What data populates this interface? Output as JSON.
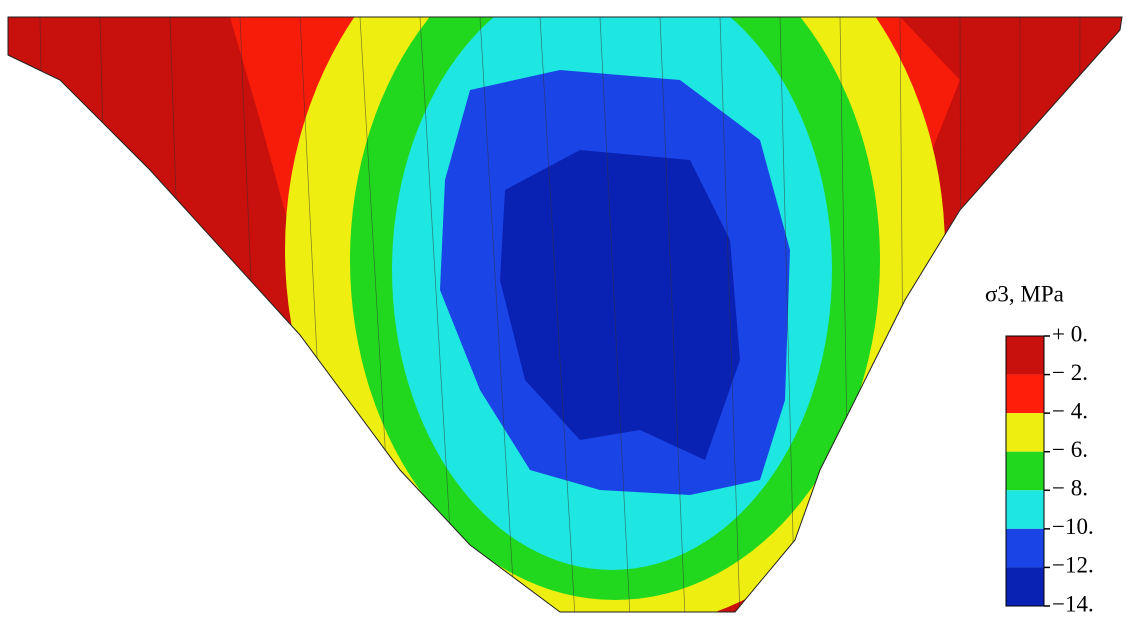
{
  "legend": {
    "title": "σ3, MPa",
    "labels": [
      "+ 0.",
      "− 2.",
      "− 4.",
      "− 6.",
      "− 8.",
      "−10.",
      "−12.",
      "−14."
    ],
    "colors": [
      "#c8100c",
      "#ff1e0a",
      "#eeee10",
      "#22d81e",
      "#1ee6e0",
      "#1a44e6",
      "#0a22b4"
    ]
  }
}
